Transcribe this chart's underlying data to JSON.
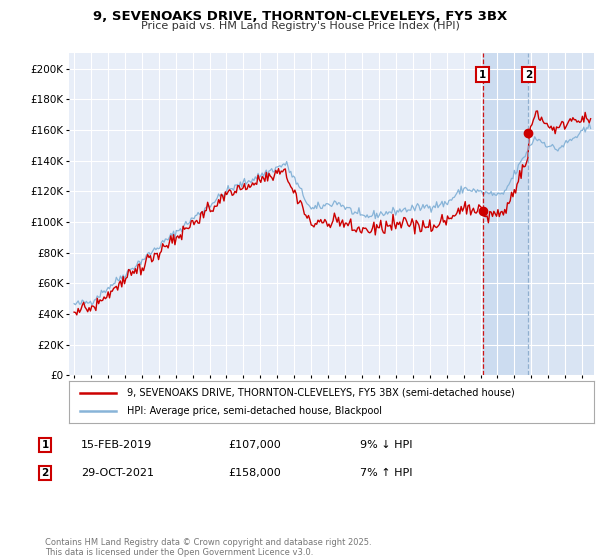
{
  "title": "9, SEVENOAKS DRIVE, THORNTON-CLEVELEYS, FY5 3BX",
  "subtitle": "Price paid vs. HM Land Registry's House Price Index (HPI)",
  "legend_red": "9, SEVENOAKS DRIVE, THORNTON-CLEVELEYS, FY5 3BX (semi-detached house)",
  "legend_blue": "HPI: Average price, semi-detached house, Blackpool",
  "transaction1_date": "15-FEB-2019",
  "transaction1_price": "£107,000",
  "transaction1_detail": "9% ↓ HPI",
  "transaction1_year": 2019.12,
  "transaction1_value": 107000,
  "transaction2_date": "29-OCT-2021",
  "transaction2_price": "£158,000",
  "transaction2_detail": "7% ↑ HPI",
  "transaction2_year": 2021.83,
  "transaction2_value": 158000,
  "background_color": "#ffffff",
  "plot_bg_color": "#e8eef8",
  "shade_color": "#ccdcf0",
  "grid_color": "#ffffff",
  "red_color": "#cc0000",
  "blue_color": "#88b4d8",
  "footnote": "Contains HM Land Registry data © Crown copyright and database right 2025.\nThis data is licensed under the Open Government Licence v3.0.",
  "ylim": [
    0,
    210000
  ],
  "yticks": [
    0,
    20000,
    40000,
    60000,
    80000,
    100000,
    120000,
    140000,
    160000,
    180000,
    200000
  ],
  "xstart": 1995,
  "xend": 2025
}
